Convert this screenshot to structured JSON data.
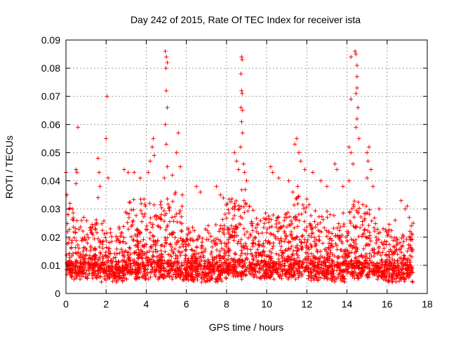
{
  "chart_data": {
    "type": "scatter",
    "title": "Day 242 of 2015, Rate Of TEC Index for receiver ista",
    "xlabel": "GPS time / hours",
    "ylabel": "ROTI / TECUs",
    "xlim": [
      0,
      18
    ],
    "ylim": [
      0,
      0.09
    ],
    "xticks": [
      0,
      2,
      4,
      6,
      8,
      10,
      12,
      14,
      16,
      18
    ],
    "yticks": [
      0,
      0.01,
      0.02,
      0.03,
      0.04,
      0.05,
      0.06,
      0.07,
      0.08,
      0.09
    ],
    "xtick_labels": [
      "0",
      "2",
      "4",
      "6",
      "8",
      "10",
      "12",
      "14",
      "16",
      "18"
    ],
    "ytick_labels": [
      "0",
      "0.01",
      "0.02",
      "0.03",
      "0.04",
      "0.05",
      "0.06",
      "0.07",
      "0.08",
      "0.09"
    ],
    "grid": true,
    "marker": "+",
    "color": "#ff0000",
    "data_extent_hours": [
      0,
      17.3
    ],
    "series": [
      {
        "name": "ROTI",
        "points": [
          [
            0.0,
            0.043
          ],
          [
            0.05,
            0.035
          ],
          [
            0.1,
            0.028
          ],
          [
            0.15,
            0.03
          ],
          [
            0.2,
            0.032
          ],
          [
            0.6,
            0.059
          ],
          [
            0.5,
            0.044
          ],
          [
            0.55,
            0.043
          ],
          [
            0.5,
            0.039
          ],
          [
            1.6,
            0.048
          ],
          [
            1.65,
            0.043
          ],
          [
            1.7,
            0.038
          ],
          [
            1.6,
            0.034
          ],
          [
            2.05,
            0.07
          ],
          [
            2.0,
            0.055
          ],
          [
            2.1,
            0.041
          ],
          [
            2.9,
            0.044
          ],
          [
            3.1,
            0.043
          ],
          [
            3.4,
            0.043
          ],
          [
            3.7,
            0.041
          ],
          [
            4.1,
            0.043
          ],
          [
            4.3,
            0.052
          ],
          [
            4.35,
            0.055
          ],
          [
            4.4,
            0.049
          ],
          [
            4.2,
            0.047
          ],
          [
            4.95,
            0.086
          ],
          [
            5.0,
            0.084
          ],
          [
            5.05,
            0.082
          ],
          [
            4.98,
            0.08
          ],
          [
            5.0,
            0.072
          ],
          [
            5.05,
            0.066
          ],
          [
            4.95,
            0.06
          ],
          [
            5.0,
            0.053
          ],
          [
            5.05,
            0.045
          ],
          [
            4.9,
            0.041
          ],
          [
            5.3,
            0.042
          ],
          [
            5.5,
            0.05
          ],
          [
            5.6,
            0.057
          ],
          [
            5.7,
            0.045
          ],
          [
            5.8,
            0.035
          ],
          [
            6.5,
            0.038
          ],
          [
            6.7,
            0.036
          ],
          [
            7.5,
            0.038
          ],
          [
            7.7,
            0.035
          ],
          [
            8.4,
            0.05
          ],
          [
            8.5,
            0.047
          ],
          [
            8.6,
            0.044
          ],
          [
            8.7,
            0.052
          ],
          [
            8.75,
            0.084
          ],
          [
            8.78,
            0.083
          ],
          [
            8.72,
            0.078
          ],
          [
            8.75,
            0.072
          ],
          [
            8.78,
            0.071
          ],
          [
            8.72,
            0.066
          ],
          [
            8.8,
            0.065
          ],
          [
            8.75,
            0.061
          ],
          [
            8.8,
            0.057
          ],
          [
            8.85,
            0.046
          ],
          [
            8.9,
            0.043
          ],
          [
            9.0,
            0.04
          ],
          [
            10.2,
            0.045
          ],
          [
            10.3,
            0.043
          ],
          [
            10.6,
            0.041
          ],
          [
            11.1,
            0.04
          ],
          [
            11.4,
            0.053
          ],
          [
            11.5,
            0.055
          ],
          [
            11.6,
            0.05
          ],
          [
            11.7,
            0.047
          ],
          [
            11.9,
            0.044
          ],
          [
            11.55,
            0.038
          ],
          [
            11.3,
            0.036
          ],
          [
            12.3,
            0.043
          ],
          [
            12.7,
            0.04
          ],
          [
            13.0,
            0.038
          ],
          [
            13.4,
            0.046
          ],
          [
            13.5,
            0.044
          ],
          [
            13.8,
            0.038
          ],
          [
            14.1,
            0.052
          ],
          [
            14.2,
            0.05
          ],
          [
            14.2,
            0.084
          ],
          [
            14.4,
            0.086
          ],
          [
            14.45,
            0.085
          ],
          [
            14.5,
            0.081
          ],
          [
            14.5,
            0.077
          ],
          [
            14.5,
            0.073
          ],
          [
            14.45,
            0.071
          ],
          [
            14.55,
            0.066
          ],
          [
            14.5,
            0.062
          ],
          [
            14.45,
            0.059
          ],
          [
            14.2,
            0.069
          ],
          [
            14.6,
            0.055
          ],
          [
            14.3,
            0.046
          ],
          [
            14.1,
            0.04
          ],
          [
            15.0,
            0.05
          ],
          [
            15.1,
            0.052
          ],
          [
            15.05,
            0.047
          ],
          [
            15.2,
            0.044
          ],
          [
            15.0,
            0.041
          ],
          [
            15.3,
            0.038
          ],
          [
            15.6,
            0.03
          ],
          [
            15.8,
            0.023
          ],
          [
            16.4,
            0.026
          ],
          [
            16.7,
            0.033
          ],
          [
            16.9,
            0.03
          ],
          [
            17.0,
            0.031
          ],
          [
            17.1,
            0.027
          ],
          [
            17.2,
            0.024
          ]
        ]
      }
    ],
    "dense_band": {
      "description": "dense cloud of ROTI points between 0 and 17.3 h, mostly 0.004-0.02 TECU/min",
      "segments": [
        {
          "from": 0.0,
          "to": 0.5,
          "base": 0.008,
          "top": 0.028
        },
        {
          "from": 0.5,
          "to": 1.6,
          "base": 0.008,
          "top": 0.024
        },
        {
          "from": 1.6,
          "to": 2.9,
          "base": 0.007,
          "top": 0.022
        },
        {
          "from": 2.9,
          "to": 4.6,
          "base": 0.008,
          "top": 0.03
        },
        {
          "from": 4.6,
          "to": 5.8,
          "base": 0.008,
          "top": 0.032
        },
        {
          "from": 5.8,
          "to": 7.8,
          "base": 0.007,
          "top": 0.022
        },
        {
          "from": 7.8,
          "to": 9.2,
          "base": 0.008,
          "top": 0.034
        },
        {
          "from": 9.2,
          "to": 11.2,
          "base": 0.008,
          "top": 0.026
        },
        {
          "from": 11.2,
          "to": 12.2,
          "base": 0.008,
          "top": 0.032
        },
        {
          "from": 12.2,
          "to": 14.0,
          "base": 0.007,
          "top": 0.026
        },
        {
          "from": 14.0,
          "to": 15.5,
          "base": 0.008,
          "top": 0.03
        },
        {
          "from": 15.5,
          "to": 17.3,
          "base": 0.007,
          "top": 0.022
        }
      ]
    }
  }
}
